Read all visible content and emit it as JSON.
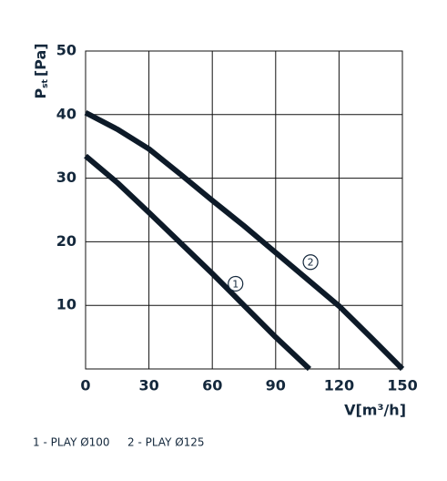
{
  "chart_data": {
    "type": "line",
    "x_label": "V[m³/h]",
    "y_label": {
      "main": "P",
      "sub": "st",
      "unit": "[Pa]"
    },
    "xlim": [
      0,
      150
    ],
    "ylim": [
      0,
      50
    ],
    "xticks": [
      0,
      30,
      60,
      90,
      120,
      150
    ],
    "yticks": [
      10,
      20,
      30,
      40,
      50
    ],
    "grid": true,
    "series": [
      {
        "name": "1 - PLAY Ø100",
        "color": "#0d1a28",
        "x": [
          0,
          15,
          30,
          45,
          60,
          75,
          90,
          106
        ],
        "values": [
          33.5,
          29.3,
          24.6,
          19.8,
          15,
          10,
          5,
          0
        ]
      },
      {
        "name": "2 - PLAY Ø125",
        "color": "#0d1a28",
        "x": [
          0,
          15,
          30,
          45,
          60,
          75,
          90,
          105,
          120,
          135,
          150
        ],
        "values": [
          40.3,
          37.7,
          34.6,
          30.6,
          26.5,
          22.5,
          18.3,
          14.1,
          9.9,
          5,
          0
        ]
      }
    ],
    "annotations": [
      {
        "text": "1",
        "x": 71,
        "y": 13.4
      },
      {
        "text": "2",
        "x": 106.5,
        "y": 16.8
      }
    ]
  }
}
